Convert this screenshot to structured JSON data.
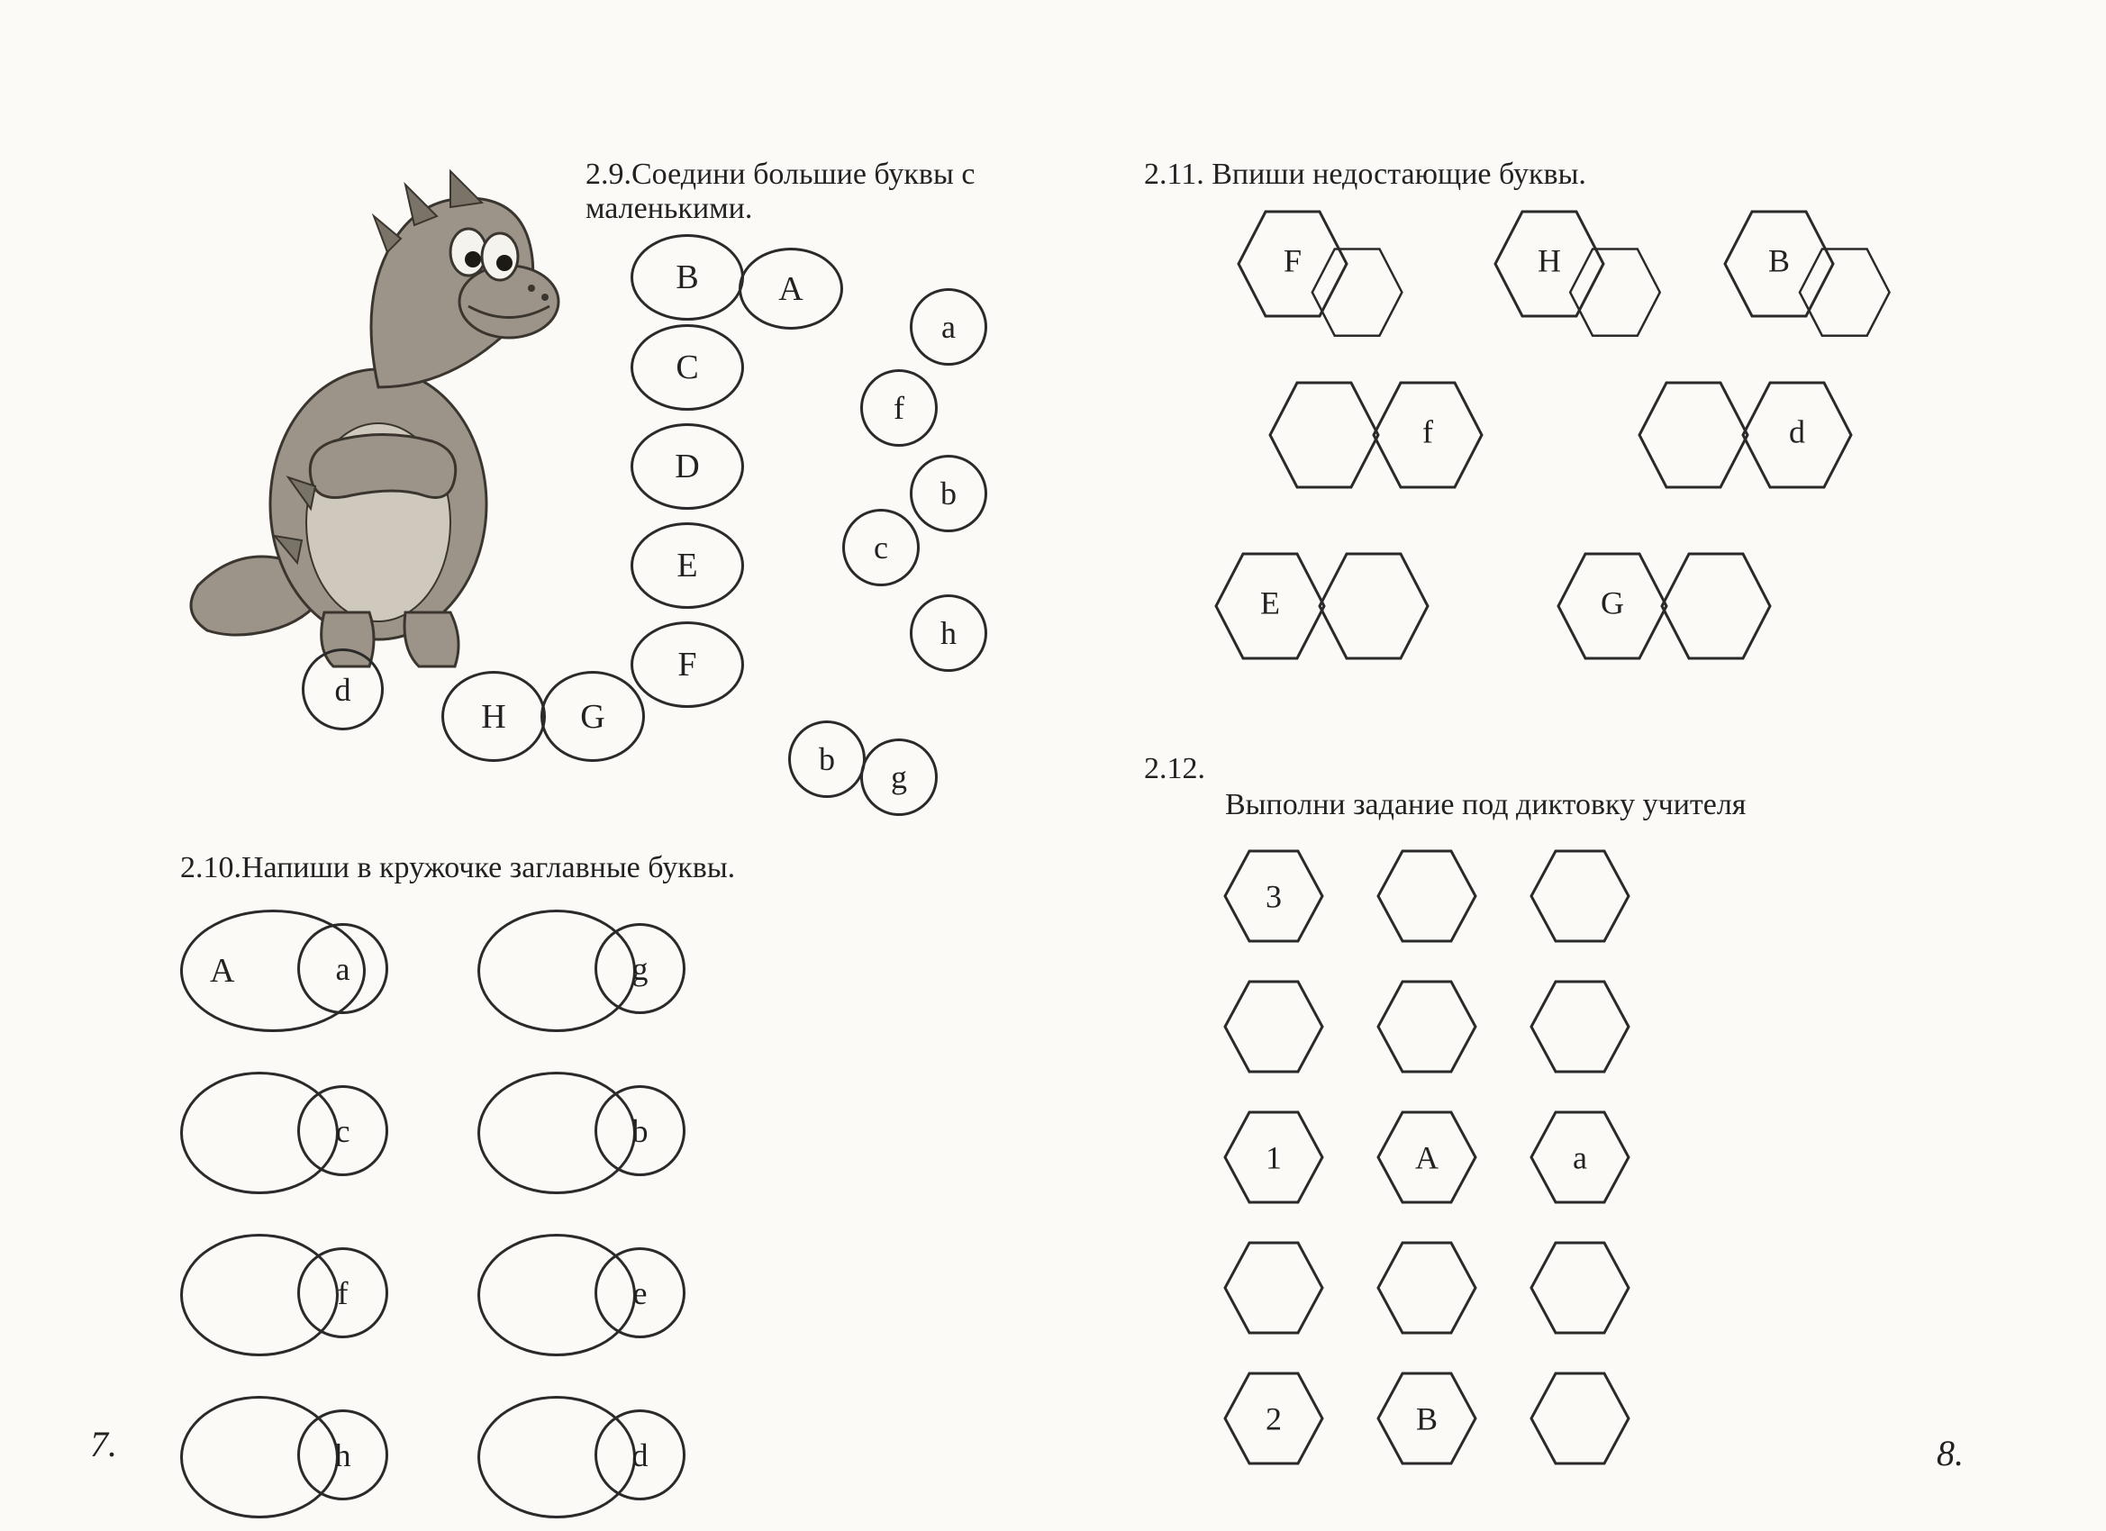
{
  "colors": {
    "ink": "#2a2a2a",
    "paper": "#fbfaf7",
    "text": "#222222"
  },
  "page_numbers": {
    "left": "7.",
    "right": "8."
  },
  "ex29": {
    "title": "2.9.Соедини большие буквы с маленькими.",
    "uppercase": [
      "B",
      "A",
      "C",
      "D",
      "E",
      "F",
      "G",
      "H"
    ],
    "lowercase": [
      "a",
      "f",
      "b",
      "c",
      "h",
      "b",
      "g",
      "d"
    ]
  },
  "ex210": {
    "title": "2.10.Напиши в кружочке заглавные буквы.",
    "pairs": [
      {
        "cap": "A",
        "low": "a"
      },
      {
        "cap": "",
        "low": "g"
      },
      {
        "cap": "",
        "low": "c"
      },
      {
        "cap": "",
        "low": "b"
      },
      {
        "cap": "",
        "low": "f"
      },
      {
        "cap": "",
        "low": "e"
      },
      {
        "cap": "",
        "low": "h"
      },
      {
        "cap": "",
        "low": "d"
      }
    ]
  },
  "ex211": {
    "title": "2.11.  Впиши  недостающие буквы.",
    "pairs": [
      {
        "left": "F",
        "right": ""
      },
      {
        "left": "H",
        "right": ""
      },
      {
        "left": "B",
        "right": ""
      },
      {
        "left": "",
        "right": "f"
      },
      {
        "left": "",
        "right": "d"
      },
      {
        "left": "E",
        "right": ""
      },
      {
        "left": "G",
        "right": ""
      }
    ]
  },
  "ex212": {
    "number": "2.12.",
    "title": "Выполни задание под диктовку учителя",
    "grid": [
      [
        "3",
        "",
        ""
      ],
      [
        "",
        "",
        ""
      ],
      [
        "1",
        "A",
        "a"
      ],
      [
        "",
        "",
        ""
      ],
      [
        "2",
        "B",
        ""
      ]
    ]
  },
  "dino": {
    "body_fill": "#9c9488",
    "body_shadow": "#7a7368",
    "belly": "#cfc8bc",
    "outline": "#3a362f",
    "eye_white": "#f5f3ee",
    "eye_black": "#1d1a15"
  }
}
